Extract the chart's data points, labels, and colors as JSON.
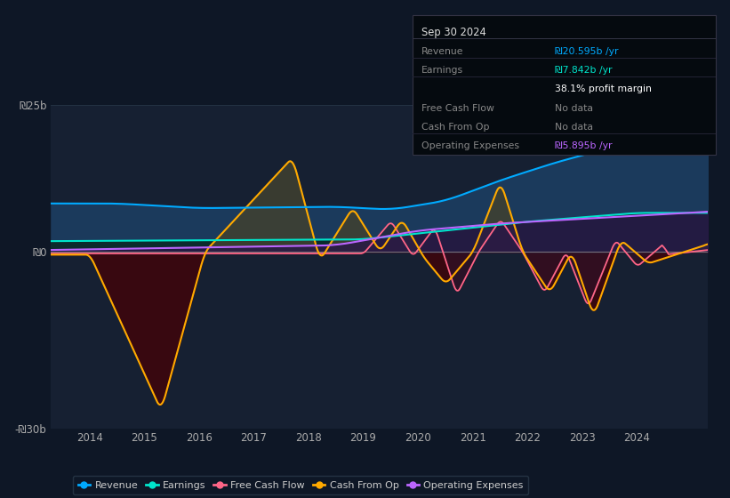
{
  "bg_color": "#0e1726",
  "plot_bg_color": "#0e1726",
  "chart_area_color": "#162032",
  "colors": {
    "revenue": "#00aaff",
    "earnings": "#00e5cc",
    "free_cash_flow": "#ff6688",
    "cash_from_op": "#ffaa00",
    "operating_expenses": "#bb66ff"
  },
  "fill_colors": {
    "revenue_pos": "#1a3a5c",
    "cash_op_pos": "#3a3a2a",
    "cash_op_neg": "#3a0a0a",
    "fcf_pos": "#2a2a3a",
    "fcf_neg": "#2a0a18",
    "op_exp_fill": "#2a1a4a"
  },
  "ytick_vals": [
    25,
    0,
    -30
  ],
  "ytick_labels": [
    "₪25b",
    "₪0",
    "-₪30b"
  ],
  "xtick_vals": [
    2014,
    2015,
    2016,
    2017,
    2018,
    2019,
    2020,
    2021,
    2022,
    2023,
    2024
  ],
  "xlim": [
    2013.3,
    2025.3
  ],
  "ylim": [
    -30,
    25
  ],
  "legend": [
    {
      "label": "Revenue",
      "color": "#00aaff"
    },
    {
      "label": "Earnings",
      "color": "#00e5cc"
    },
    {
      "label": "Free Cash Flow",
      "color": "#ff6688"
    },
    {
      "label": "Cash From Op",
      "color": "#ffaa00"
    },
    {
      "label": "Operating Expenses",
      "color": "#bb66ff"
    }
  ],
  "tooltip": {
    "date": "Sep 30 2024",
    "rows": [
      {
        "label": "Revenue",
        "value": "₪20.595b /yr",
        "val_color": "#00aaff",
        "label_color": "#888888"
      },
      {
        "label": "Earnings",
        "value": "₪7.842b /yr",
        "val_color": "#00e5cc",
        "label_color": "#888888"
      },
      {
        "label": "",
        "value": "38.1% profit margin",
        "val_color": "#ffffff",
        "label_color": "#888888"
      },
      {
        "label": "Free Cash Flow",
        "value": "No data",
        "val_color": "#888888",
        "label_color": "#888888"
      },
      {
        "label": "Cash From Op",
        "value": "No data",
        "val_color": "#888888",
        "label_color": "#888888"
      },
      {
        "label": "Operating Expenses",
        "value": "₪5.895b /yr",
        "val_color": "#bb66ff",
        "label_color": "#888888"
      }
    ]
  }
}
